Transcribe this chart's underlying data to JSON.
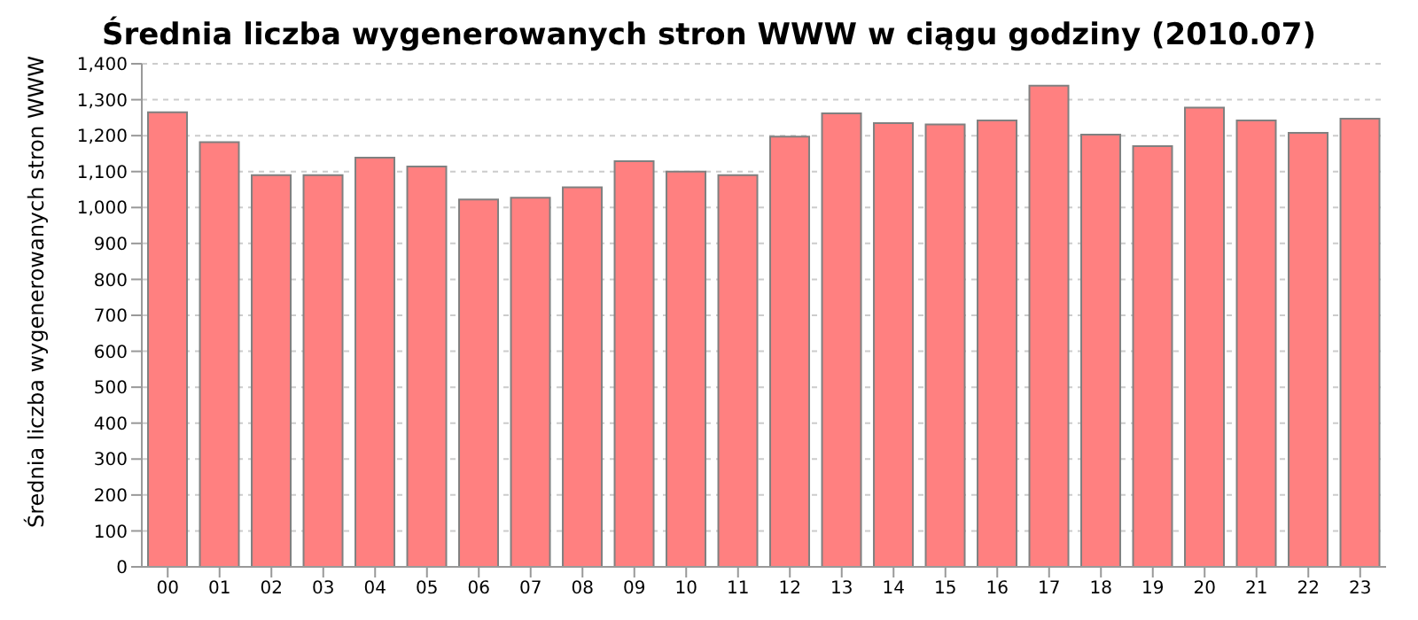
{
  "chart_data": {
    "type": "bar",
    "title": "Średnia liczba wygenerowanych stron WWW w ciągu godziny (2010.07)",
    "ylabel": "Średnia liczba wygenerowanych stron WWW",
    "categories": [
      "00",
      "01",
      "02",
      "03",
      "04",
      "05",
      "06",
      "07",
      "08",
      "09",
      "10",
      "11",
      "12",
      "13",
      "14",
      "15",
      "16",
      "17",
      "18",
      "19",
      "20",
      "21",
      "22",
      "23"
    ],
    "values": [
      1265,
      1182,
      1090,
      1090,
      1139,
      1114,
      1022,
      1027,
      1056,
      1129,
      1100,
      1090,
      1197,
      1262,
      1235,
      1231,
      1242,
      1339,
      1203,
      1171,
      1278,
      1242,
      1208,
      1247
    ],
    "color": "#ff8080",
    "ylim": [
      0,
      1400
    ],
    "yticks": [
      0,
      100,
      200,
      300,
      400,
      500,
      600,
      700,
      800,
      900,
      {
        "value": 1000,
        "label": "1,000"
      },
      {
        "value": 1100,
        "label": "1,100"
      },
      {
        "value": 1200,
        "label": "1,200"
      },
      {
        "value": 1300,
        "label": "1,300"
      },
      {
        "value": 1400,
        "label": "1,400"
      }
    ],
    "grid": "y",
    "legend": false
  }
}
